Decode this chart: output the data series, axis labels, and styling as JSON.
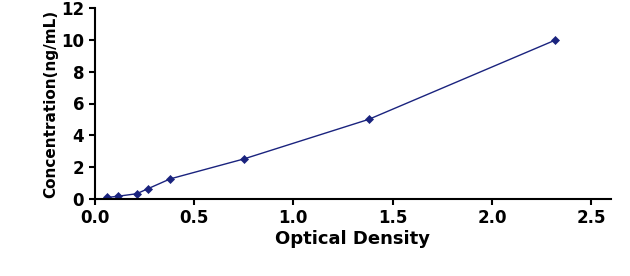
{
  "x": [
    0.063,
    0.118,
    0.212,
    0.268,
    0.381,
    0.75,
    1.38,
    2.32
  ],
  "y": [
    0.078,
    0.156,
    0.313,
    0.625,
    1.25,
    2.5,
    5.0,
    10.0
  ],
  "line_color": "#1A237E",
  "marker": "D",
  "marker_color": "#1A237E",
  "marker_size": 4,
  "linewidth": 1.0,
  "xlabel": "Optical Density",
  "ylabel": "Concentration(ng/mL)",
  "xlim": [
    0,
    2.6
  ],
  "ylim": [
    0,
    12
  ],
  "xticks": [
    0,
    0.5,
    1,
    1.5,
    2,
    2.5
  ],
  "yticks": [
    0,
    2,
    4,
    6,
    8,
    10,
    12
  ],
  "xlabel_fontsize": 13,
  "ylabel_fontsize": 11,
  "tick_fontsize": 12,
  "xlabel_fontweight": "bold",
  "ylabel_fontweight": "bold",
  "tick_fontweight": "bold"
}
